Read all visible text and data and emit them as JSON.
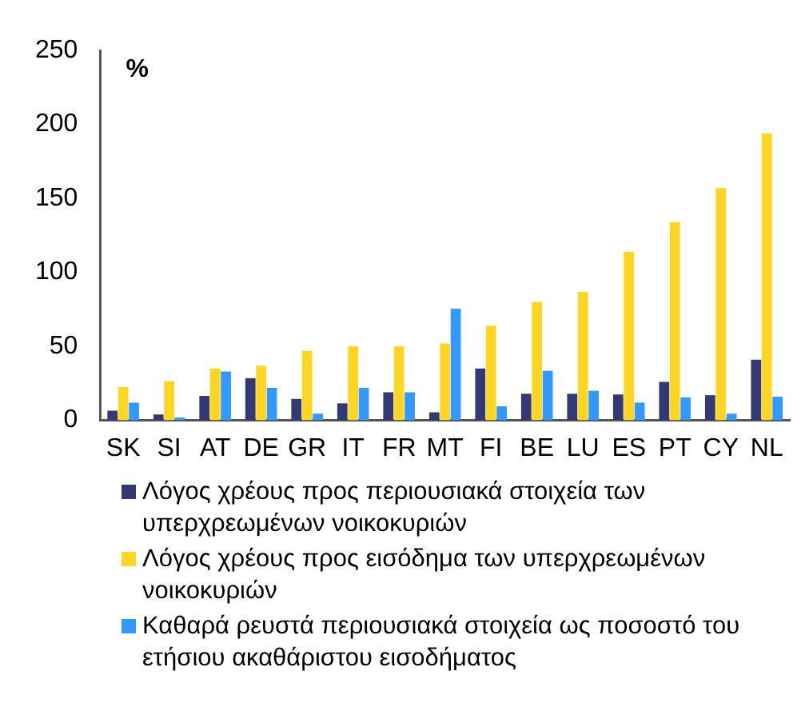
{
  "chart_data": {
    "type": "bar",
    "ylabel": "%",
    "categories": [
      "SK",
      "SI",
      "AT",
      "DE",
      "GR",
      "IT",
      "FR",
      "MT",
      "FI",
      "BE",
      "LU",
      "ES",
      "PT",
      "CY",
      "NL"
    ],
    "series": [
      {
        "name": "Λόγος χρέους προς περιουσιακά στοιχεία των υπερχρεωμένων νοικοκυριών",
        "color": "#333a73",
        "values": [
          6.5,
          4,
          16.5,
          28.5,
          14.5,
          11.5,
          19,
          5.5,
          35,
          18,
          18,
          17.5,
          26,
          17,
          41
        ]
      },
      {
        "name": "Λόγος χρέους προς εισόδημα των υπερχρεωμένων νοικοκυριών",
        "color": "#ffd524",
        "values": [
          22.5,
          26.5,
          35,
          37,
          47,
          50,
          50,
          52,
          64,
          80,
          87,
          114,
          134,
          157,
          194
        ]
      },
      {
        "name": "Καθαρά ρευστά περιουσιακά στοιχεία ως ποσοστό του ετήσιου ακαθάριστου εισοδήματος",
        "color": "#3399ff",
        "values": [
          12,
          2,
          33,
          22,
          4.5,
          22,
          19,
          75.5,
          9.5,
          33.5,
          20,
          12,
          15.5,
          4.5,
          16
        ]
      }
    ],
    "ylim": [
      0,
      250
    ],
    "yticks": [
      0,
      50,
      100,
      150,
      200,
      250
    ],
    "grid": false,
    "legend": "bottom"
  }
}
